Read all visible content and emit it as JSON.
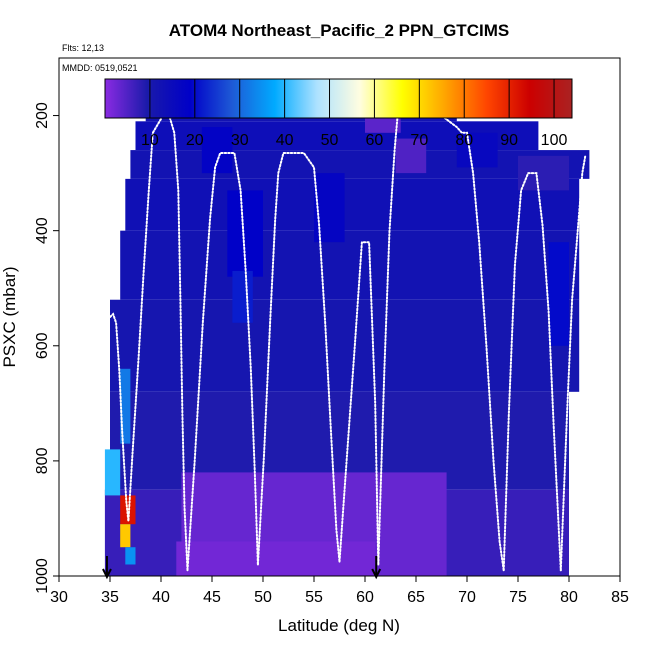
{
  "chart_data": {
    "type": "heatmap",
    "title": "ATOM4 Northeast_Pacific_2 PPN_GTCIMS",
    "flights_label": "Flts: 12,13",
    "dates_label": "MMDD: 0519,0521",
    "xlabel": "Latitude (deg N)",
    "ylabel": "PSXC (mbar)",
    "xlim": [
      30,
      85
    ],
    "ylim": [
      1000,
      100
    ],
    "x_ticks": [
      "30",
      "35",
      "40",
      "45",
      "50",
      "55",
      "60",
      "65",
      "70",
      "75",
      "80",
      "85"
    ],
    "y_ticks": [
      "200",
      "400",
      "600",
      "800",
      "1000"
    ],
    "colorbar": {
      "range": [
        0,
        104
      ],
      "tick_labels": [
        "10",
        "20",
        "30",
        "40",
        "50",
        "60",
        "70",
        "80",
        "90",
        "100"
      ],
      "stops": [
        "#8a2be2",
        "#1a1aaa",
        "#0000c8",
        "#1e5ad6",
        "#00aaff",
        "#aee2ff",
        "#fffde0",
        "#ffff00",
        "#ffa500",
        "#ff4500",
        "#cc0000",
        "#aa2222"
      ]
    },
    "cells": [
      {
        "lat": [
          38.5,
          69
        ],
        "p": [
          170,
          210
        ],
        "value": 12
      },
      {
        "lat": [
          37.5,
          77
        ],
        "p": [
          210,
          260
        ],
        "value": 14
      },
      {
        "lat": [
          37,
          82
        ],
        "p": [
          260,
          310
        ],
        "value": 12
      },
      {
        "lat": [
          36.5,
          81
        ],
        "p": [
          310,
          400
        ],
        "value": 13
      },
      {
        "lat": [
          36,
          81
        ],
        "p": [
          400,
          520
        ],
        "value": 12
      },
      {
        "lat": [
          35,
          81
        ],
        "p": [
          520,
          680
        ],
        "value": 11
      },
      {
        "lat": [
          35,
          80
        ],
        "p": [
          680,
          850
        ],
        "value": 9
      },
      {
        "lat": [
          34.5,
          80
        ],
        "p": [
          850,
          1000
        ],
        "value": 7
      },
      {
        "lat": [
          42,
          68
        ],
        "p": [
          820,
          1000
        ],
        "value": 3
      },
      {
        "lat": [
          41.5,
          61
        ],
        "p": [
          940,
          1000
        ],
        "value": 2
      },
      {
        "lat": [
          44,
          47
        ],
        "p": [
          220,
          300
        ],
        "value": 18
      },
      {
        "lat": [
          46.5,
          50
        ],
        "p": [
          330,
          480
        ],
        "value": 19
      },
      {
        "lat": [
          47,
          49
        ],
        "p": [
          470,
          560
        ],
        "value": 22
      },
      {
        "lat": [
          55,
          58
        ],
        "p": [
          300,
          420
        ],
        "value": 17
      },
      {
        "lat": [
          63,
          66
        ],
        "p": [
          240,
          300
        ],
        "value": 5
      },
      {
        "lat": [
          60,
          63.5
        ],
        "p": [
          190,
          230
        ],
        "value": 4
      },
      {
        "lat": [
          69,
          73
        ],
        "p": [
          230,
          290
        ],
        "value": 16
      },
      {
        "lat": [
          75,
          80
        ],
        "p": [
          270,
          330
        ],
        "value": 8
      },
      {
        "lat": [
          78,
          80
        ],
        "p": [
          420,
          600
        ],
        "value": 20
      },
      {
        "lat": [
          34.5,
          36
        ],
        "p": [
          780,
          860
        ],
        "value": 40
      },
      {
        "lat": [
          36,
          37
        ],
        "p": [
          640,
          770
        ],
        "value": 32
      },
      {
        "lat": [
          36,
          37.5
        ],
        "p": [
          860,
          910
        ],
        "value": 92
      },
      {
        "lat": [
          36,
          37
        ],
        "p": [
          910,
          950
        ],
        "value": 72
      },
      {
        "lat": [
          36.5,
          37.5
        ],
        "p": [
          950,
          980
        ],
        "value": 35
      }
    ],
    "flight_tracks": [
      {
        "lat": [
          35,
          35.3,
          35.6,
          35.9,
          36.2,
          36.6,
          36.8,
          37.2,
          37.8,
          38.3,
          38.8,
          39.2,
          40.2,
          40.8,
          41.3,
          41.7,
          41.9,
          42.1,
          42.3,
          42.6
        ],
        "p": [
          550,
          545,
          560,
          640,
          750,
          870,
          905,
          790,
          620,
          470,
          330,
          230,
          200,
          200,
          230,
          330,
          520,
          720,
          880,
          990
        ]
      },
      {
        "lat": [
          42.6,
          43.3,
          44.1,
          44.8,
          45.3,
          45.8,
          46.4,
          47.2,
          47.8,
          48.3,
          48.8,
          49.2,
          49.5
        ],
        "p": [
          990,
          800,
          560,
          380,
          290,
          265,
          265,
          265,
          330,
          470,
          640,
          820,
          980
        ]
      },
      {
        "lat": [
          49.5,
          50.1,
          50.7,
          51.2,
          51.5,
          52,
          53,
          54,
          55,
          55.5,
          56.1,
          56.7,
          57.2,
          57.5
        ],
        "p": [
          980,
          790,
          560,
          380,
          300,
          265,
          265,
          265,
          290,
          390,
          560,
          760,
          920,
          975
        ]
      },
      {
        "lat": [
          57.5,
          58.2,
          59,
          59.7,
          60.4,
          61,
          61.3
        ],
        "p": [
          975,
          800,
          600,
          420,
          420,
          700,
          980
        ]
      },
      {
        "lat": [
          61.3,
          61.9,
          62.4,
          62.9,
          63.2,
          63.5,
          64,
          65.5,
          67.5,
          69,
          69.5,
          70,
          70.6,
          71.2,
          71.9,
          72.6,
          73.2,
          73.6
        ],
        "p": [
          980,
          640,
          400,
          260,
          200,
          200,
          200,
          200,
          200,
          220,
          230,
          230,
          300,
          420,
          600,
          800,
          940,
          990
        ]
      },
      {
        "lat": [
          73.6,
          74.1,
          74.7,
          75.3,
          76,
          76.8,
          77.4,
          78,
          78.5,
          79,
          79.2
        ],
        "p": [
          990,
          720,
          460,
          330,
          300,
          300,
          390,
          540,
          740,
          920,
          990
        ]
      },
      {
        "lat": [
          79.2,
          79.8,
          80.3,
          80.9,
          81.3,
          81.6
        ],
        "p": [
          990,
          720,
          520,
          390,
          300,
          270
        ]
      }
    ],
    "markers": [
      {
        "lat": 34.7,
        "direction": "down"
      },
      {
        "lat": 61.1,
        "direction": "down"
      }
    ]
  }
}
